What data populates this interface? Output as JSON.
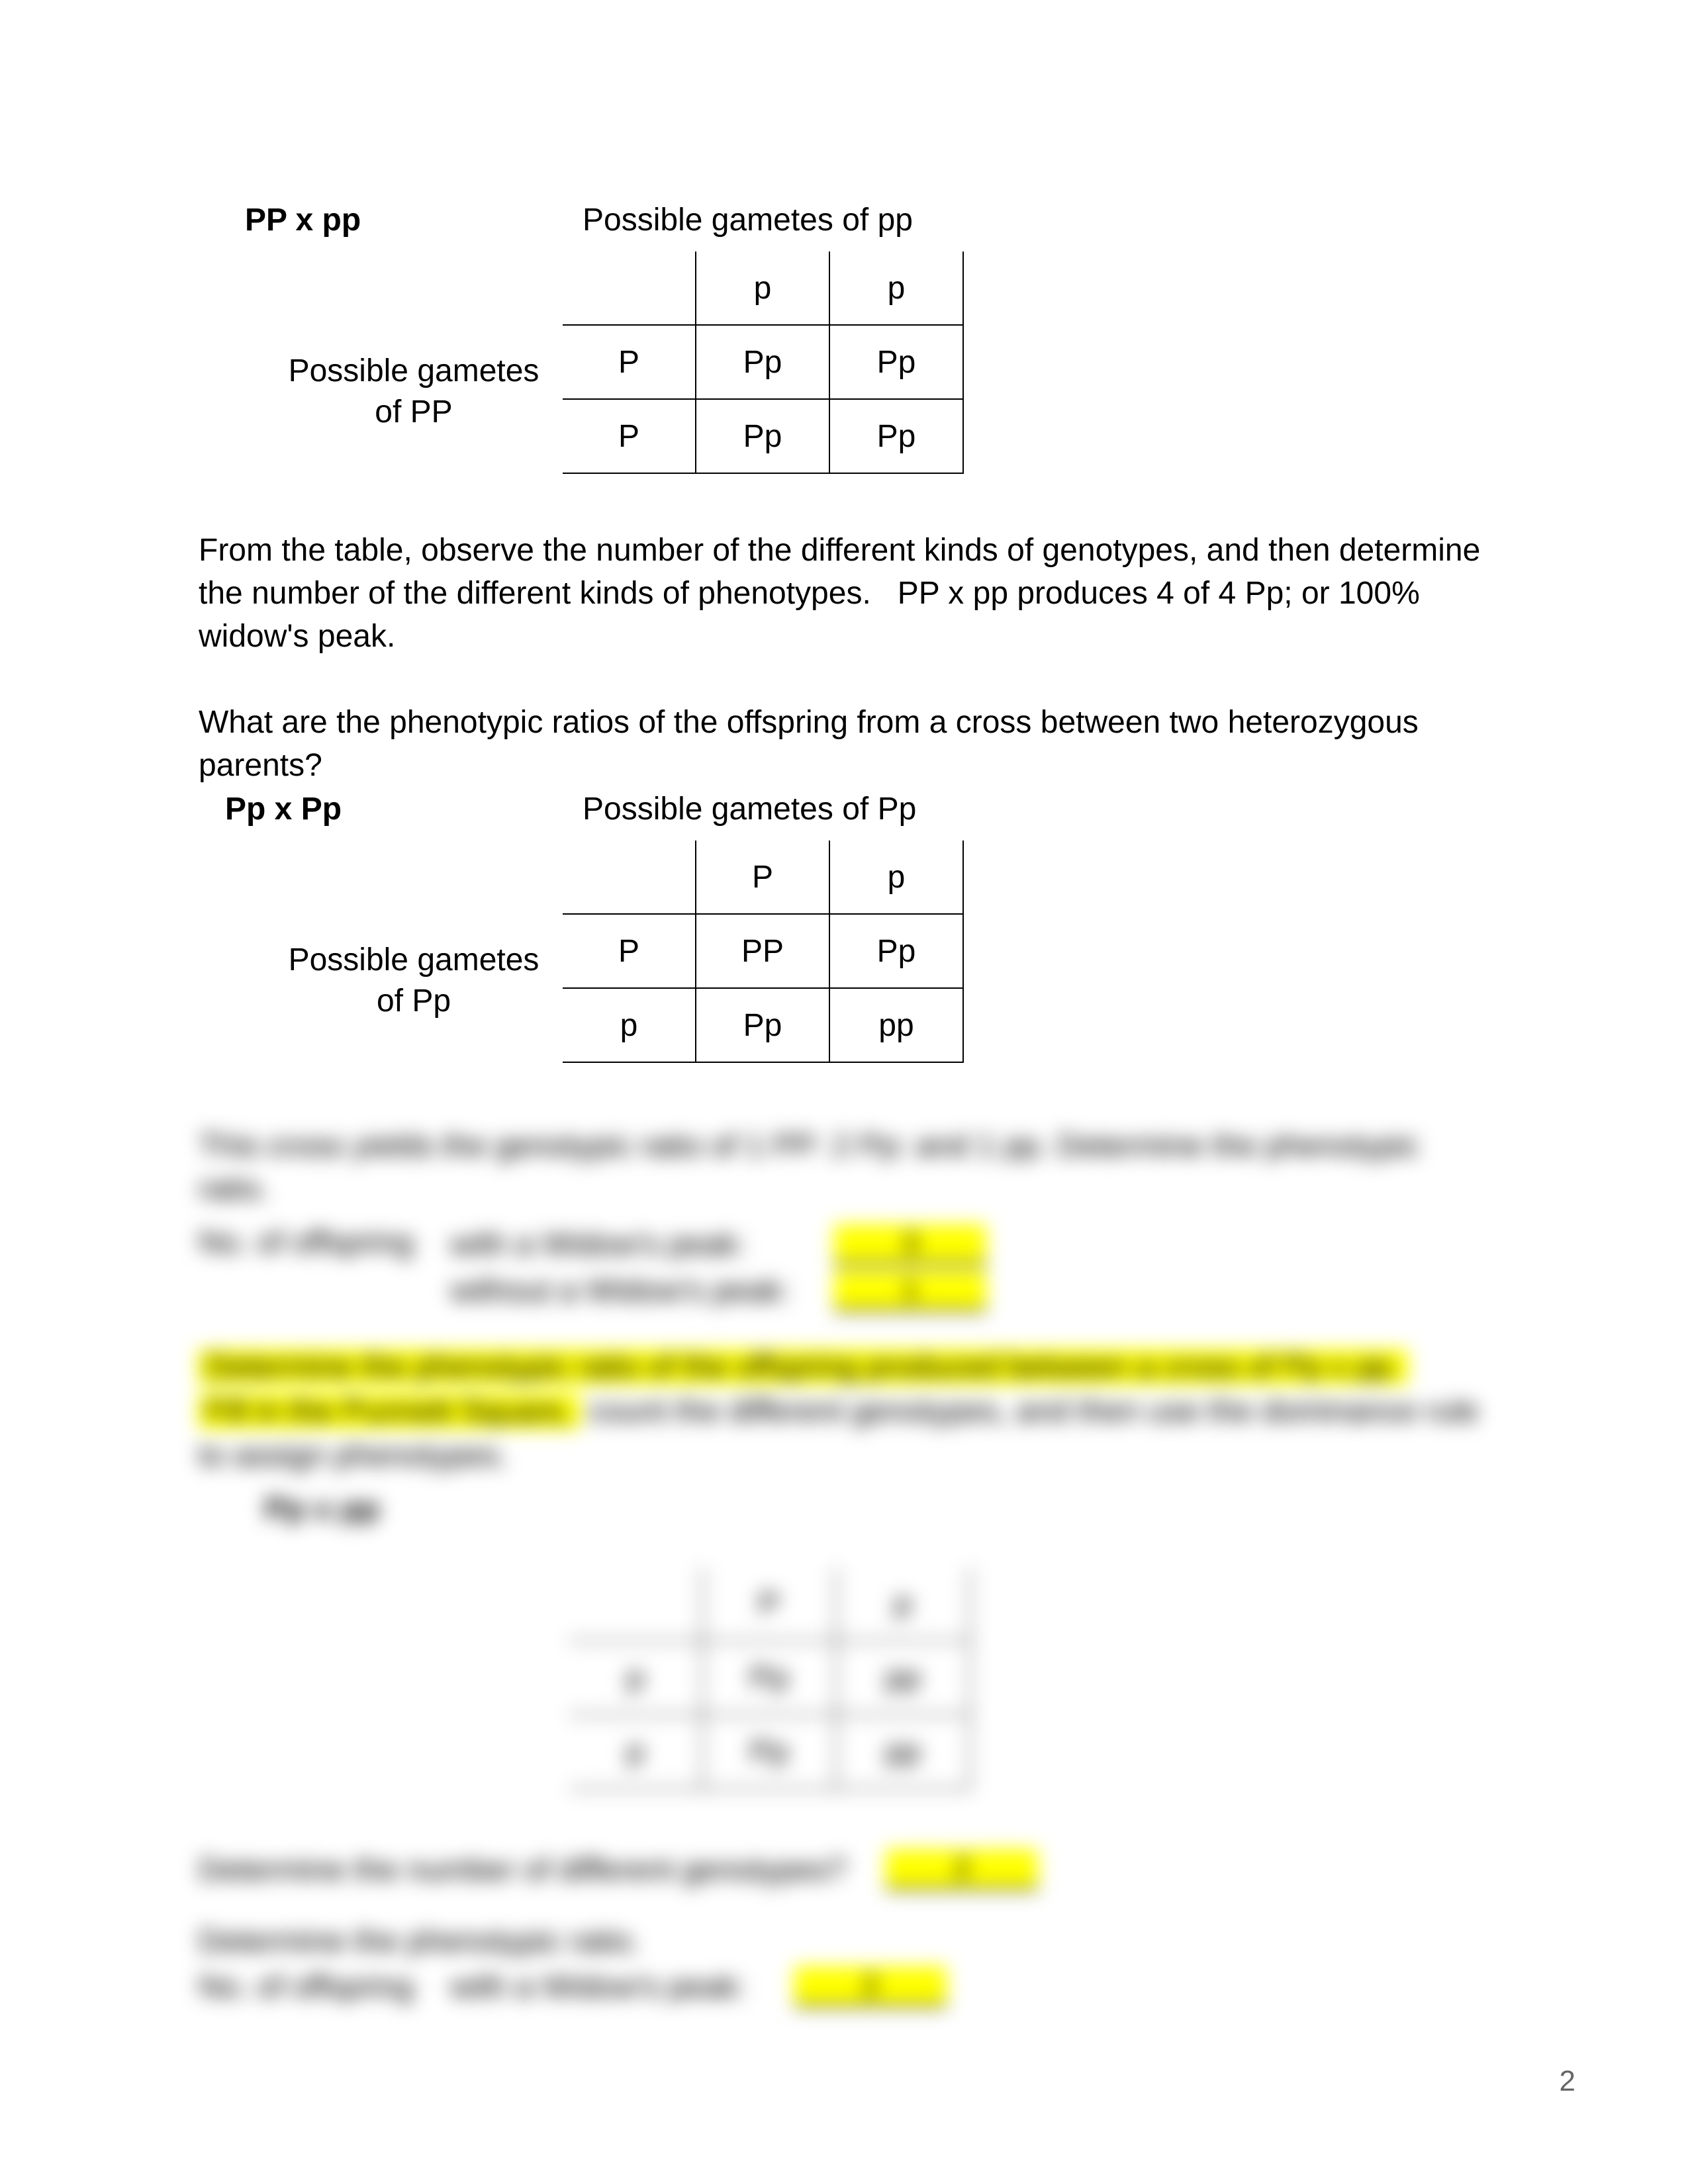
{
  "cross1": {
    "title": "PP x pp",
    "top_caption": "Possible gametes of pp",
    "side_caption": "Possible gametes<br>of PP",
    "col_headers": [
      "p",
      "p"
    ],
    "row_headers": [
      "P",
      "P"
    ],
    "cells": [
      [
        "Pp",
        "Pp"
      ],
      [
        "Pp",
        "Pp"
      ]
    ]
  },
  "para1": "From the table, observe the number of the different kinds of genotypes, and then determine the number of the different kinds of phenotypes.   PP x pp produces 4 of 4 Pp; or 100% widow's peak.",
  "para2": "What are the phenotypic ratios of the offspring from a cross between two heterozygous parents?",
  "cross2": {
    "title": "Pp x Pp",
    "top_caption": "Possible gametes of Pp",
    "side_caption": "Possible gametes<br>of Pp",
    "col_headers": [
      "P",
      "p"
    ],
    "row_headers": [
      "P",
      "p"
    ],
    "cells": [
      [
        "PP",
        "Pp"
      ],
      [
        "Pp",
        "pp"
      ]
    ]
  },
  "blurred": {
    "line1": "This cross yields the genotypic ratio of 1 PP: 2 Pp: and 1 pp.  Determine the phenotypic ratio.",
    "offspring_label": "No. of offspring",
    "with_label": "with a Widow's peak:",
    "without_label": "without a Widow's peak:",
    "ans1": "3",
    "ans2": "1",
    "q_line_a": "Determine the phenotypic ratio of the offspring produced between a cross of Pp x pp.",
    "q_line_b": "Fill in the Punnett Square,",
    "q_line_b_rest": " count the different genotypes, and then use the dominance rule to assign phenotypes.",
    "cross3_title": "Pp x pp",
    "cross3": {
      "col_headers": [
        "P",
        "p"
      ],
      "row_headers": [
        "p",
        "p"
      ],
      "cells": [
        [
          "Pp",
          "pp"
        ],
        [
          "Pp",
          "pp"
        ]
      ]
    },
    "q2": "Determine the number of different genotypes?",
    "q2_ans": "2",
    "q3a": "Determine the phenotypic ratio.",
    "q3b_label": "No. of offspring",
    "q3b_with": "with a Widow's peak:",
    "q3b_ans": "2"
  },
  "page_number": "2"
}
